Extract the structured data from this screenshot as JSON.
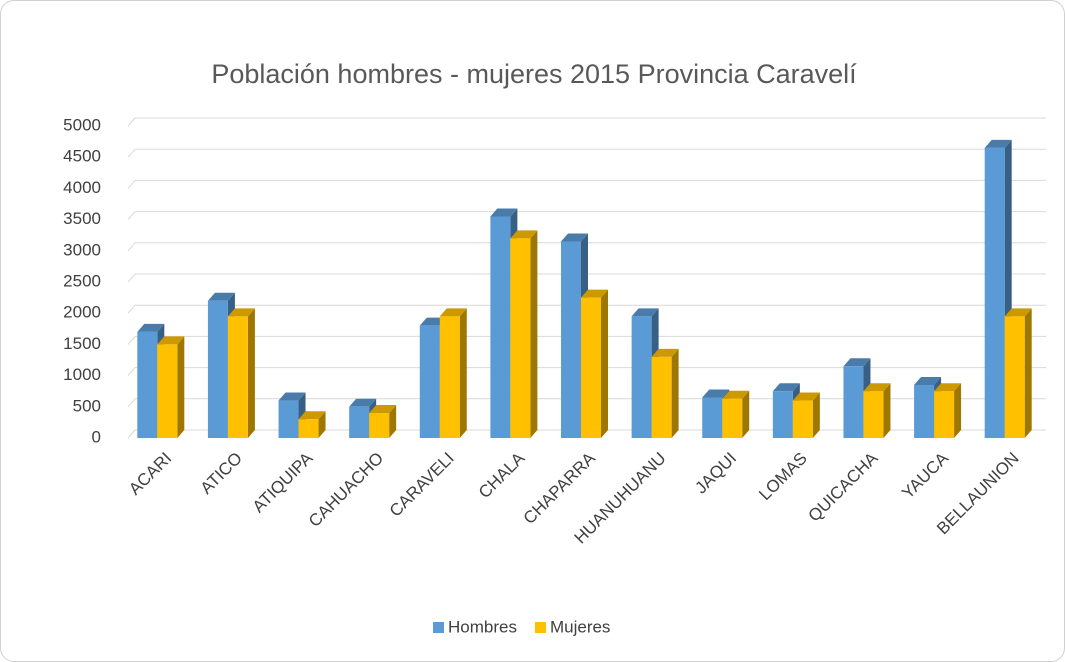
{
  "chart_data": {
    "type": "bar3d",
    "title": "Población hombres - mujeres 2015 Provincia Caravelí",
    "categories": [
      "ACARI",
      "ATICO",
      "ATIQUIPA",
      "CAHUACHO",
      "CARAVELI",
      "CHALA",
      "CHAPARRA",
      "HUANUHUANU",
      "JAQUI",
      "LOMAS",
      "QUICACHA",
      "YAUCA",
      "BELLAUNION"
    ],
    "series": [
      {
        "name": "Hombres",
        "color": "#5b9bd5",
        "values": [
          1700,
          2200,
          600,
          500,
          1800,
          3550,
          3150,
          1950,
          650,
          750,
          1150,
          850,
          4650
        ]
      },
      {
        "name": "Mujeres",
        "color": "#ffc000",
        "values": [
          1500,
          1950,
          300,
          400,
          1950,
          3200,
          2250,
          1300,
          630,
          600,
          750,
          750,
          1950
        ]
      }
    ],
    "ylim": [
      0,
      5000
    ],
    "yticks": [
      0,
      500,
      1000,
      1500,
      2000,
      2500,
      3000,
      3500,
      4000,
      4500,
      5000
    ],
    "grid": true,
    "legend": "bottom"
  }
}
